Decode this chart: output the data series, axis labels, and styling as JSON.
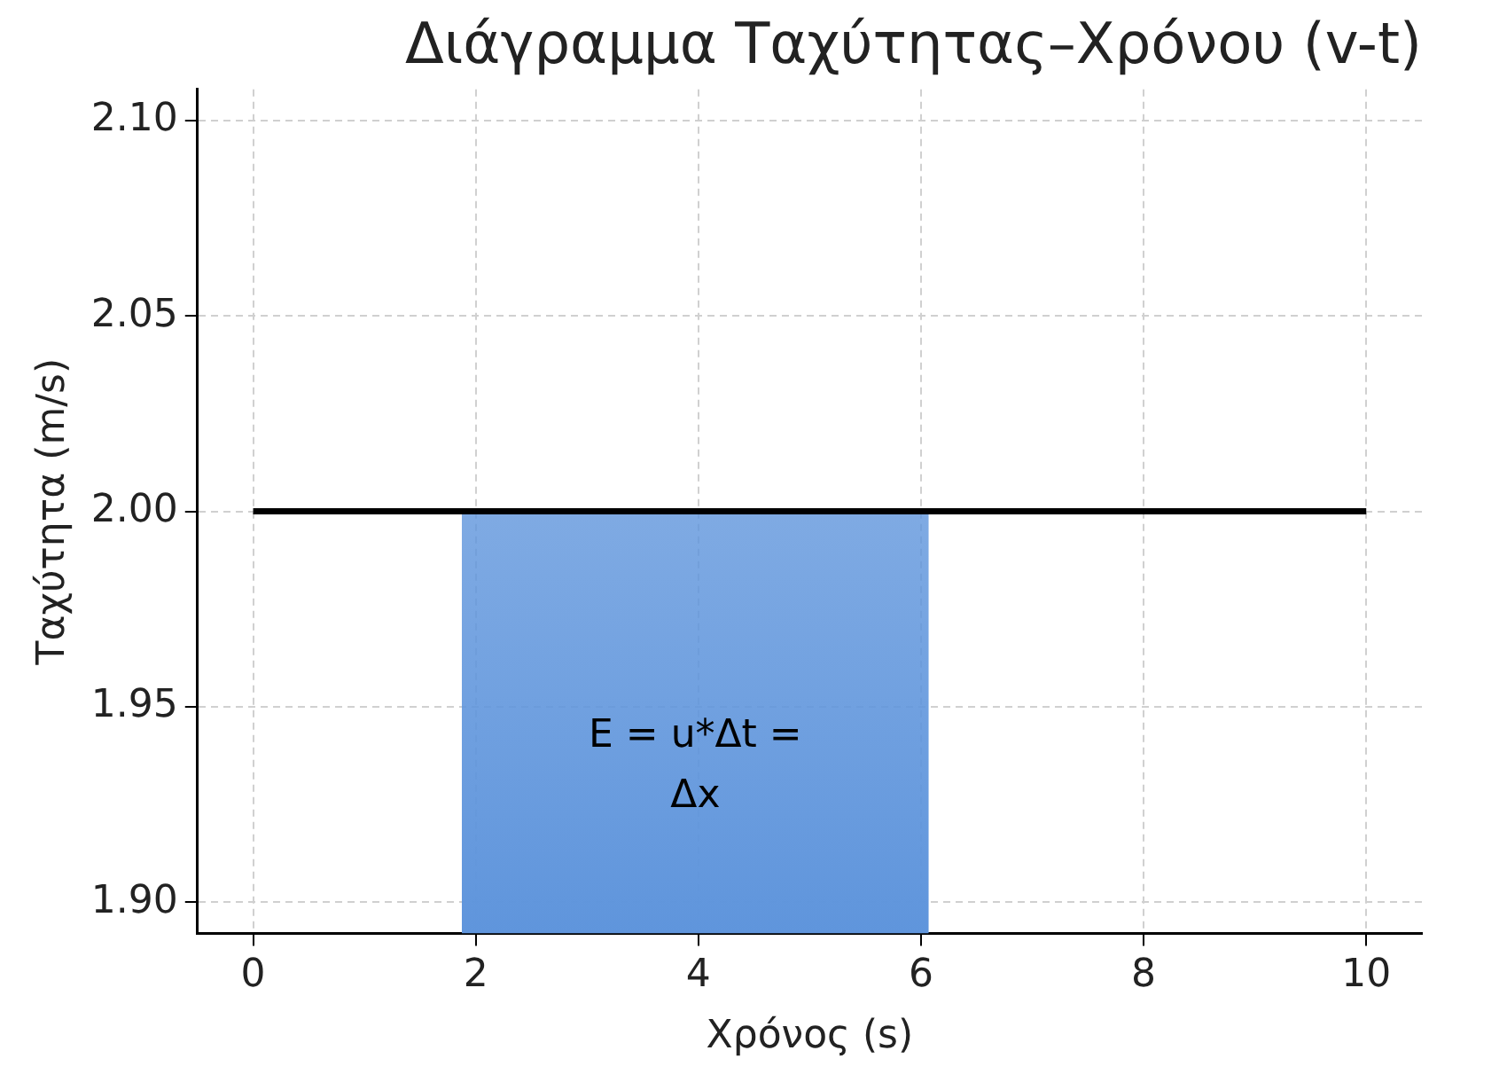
{
  "chart_data": {
    "type": "line",
    "title": "Διάγραμμα Ταχύτητας–Χρόνου (v-t)",
    "xlabel": "Χρόνος (s)",
    "ylabel": "Ταχύτητα (m/s)",
    "series": [
      {
        "type": "area",
        "color": "#5f95dc",
        "x": [
          1.875,
          6.07
        ],
        "values": [
          2.0,
          2.0
        ]
      },
      {
        "type": "line",
        "color": "#000000",
        "x": [
          0,
          10
        ],
        "values": [
          2.0,
          2.0
        ]
      }
    ],
    "xlim": [
      -0.5,
      10.5
    ],
    "xticks": [
      0,
      2,
      4,
      6,
      8,
      10
    ],
    "ylim": [
      1.892,
      2.108
    ],
    "yticks": [
      {
        "value": 1.9,
        "label": "1.90"
      },
      {
        "value": 1.95,
        "label": "1.95"
      },
      {
        "value": 2.0,
        "label": "2.00"
      },
      {
        "value": 2.05,
        "label": "2.05"
      },
      {
        "value": 2.1,
        "label": "2.10"
      }
    ],
    "grid": true,
    "legend": false,
    "marker": "none",
    "line_style": "solid",
    "annotations": [
      "E = u*Δt = Δx"
    ]
  }
}
